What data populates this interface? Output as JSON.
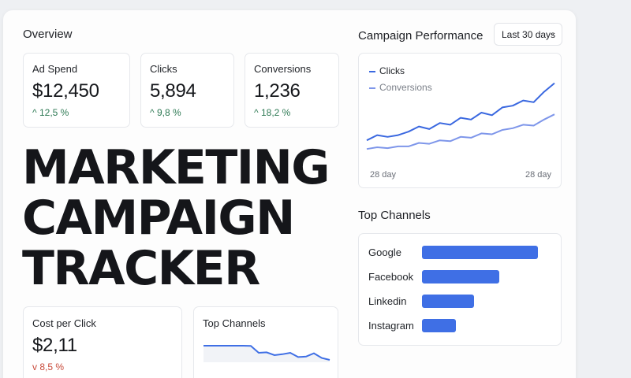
{
  "overview": {
    "title": "Overview",
    "stats": [
      {
        "label": "Ad Spend",
        "value": "$12,450",
        "arrow": "^",
        "change": "12,5 %",
        "direction": "up"
      },
      {
        "label": "Clicks",
        "value": "5,894",
        "arrow": "^",
        "change": "9,8 %",
        "direction": "up"
      },
      {
        "label": "Conversions",
        "value": "1,236",
        "arrow": "^",
        "change": "18,2 %",
        "direction": "up"
      }
    ]
  },
  "hero": {
    "lines": [
      "MARKETING",
      "CAMPAIGN",
      "TRACKER"
    ]
  },
  "cpc": {
    "label": "Cost per Click",
    "value": "$2,11",
    "arrow": "v",
    "change": "8,5 %",
    "direction": "down"
  },
  "mini_channels": {
    "title": "Top Channels"
  },
  "performance": {
    "title": "Campaign Performance",
    "range_label": "Last 30 days",
    "legend": [
      {
        "name": "Clicks",
        "color": "#3a68e0"
      },
      {
        "name": "Conversions",
        "color": "#7e96ea"
      }
    ],
    "x_start_label": "28 day",
    "x_end_label": "28 day"
  },
  "channels": {
    "title": "Top Channels"
  },
  "colors": {
    "accent": "#3f6fe5",
    "positive": "#2f7a55",
    "negative": "#c84a3a"
  },
  "chart_data": [
    {
      "type": "line",
      "title": "Campaign Performance",
      "x_labels": [
        "28 day",
        "28 day"
      ],
      "y_range": [
        0,
        100
      ],
      "grid": false,
      "legend_position": "top-left",
      "series": [
        {
          "name": "Clicks",
          "values": [
            18,
            24,
            22,
            24,
            28,
            34,
            31,
            38,
            36,
            44,
            42,
            50,
            47,
            56,
            58,
            64,
            62,
            74,
            84
          ]
        },
        {
          "name": "Conversions",
          "values": [
            8,
            10,
            9,
            11,
            11,
            15,
            14,
            18,
            17,
            22,
            21,
            26,
            25,
            30,
            32,
            36,
            35,
            42,
            48
          ]
        }
      ]
    },
    {
      "type": "bar",
      "title": "Top Channels",
      "orientation": "horizontal",
      "categories": [
        "Google",
        "Facebook",
        "Linkedin",
        "Instagram"
      ],
      "values": [
        100,
        67,
        45,
        29
      ],
      "xlim": [
        0,
        100
      ]
    },
    {
      "type": "line",
      "title": "Top Channels",
      "y_range": [
        0,
        100
      ],
      "series": [
        {
          "values": [
            70,
            70,
            70,
            70,
            70,
            70,
            69,
            40,
            42,
            30,
            34,
            40,
            22,
            24,
            38,
            18,
            10
          ]
        }
      ]
    }
  ]
}
